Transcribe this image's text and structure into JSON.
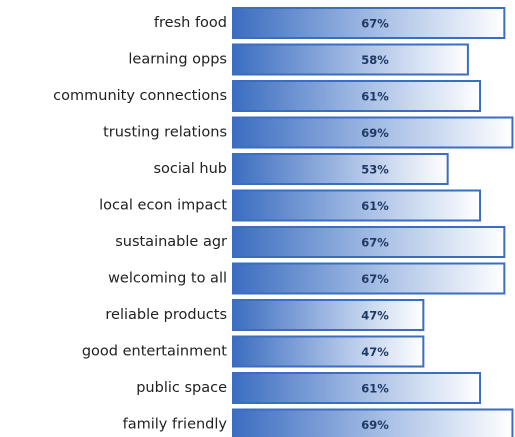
{
  "chart_data": {
    "type": "bar",
    "orientation": "horizontal",
    "categories": [
      "fresh food",
      "learning opps",
      "community connections",
      "trusting relations",
      "social hub",
      "local econ impact",
      "sustainable agr",
      "welcoming to all",
      "reliable products",
      "good entertainment",
      "public space",
      "family friendly"
    ],
    "values": [
      67,
      58,
      61,
      69,
      53,
      61,
      67,
      67,
      47,
      47,
      61,
      69
    ],
    "value_labels": [
      "67%",
      "58%",
      "61%",
      "69%",
      "53%",
      "61%",
      "67%",
      "67%",
      "47%",
      "47%",
      "61%",
      "69%"
    ],
    "color": "#3b6dc0"
  }
}
